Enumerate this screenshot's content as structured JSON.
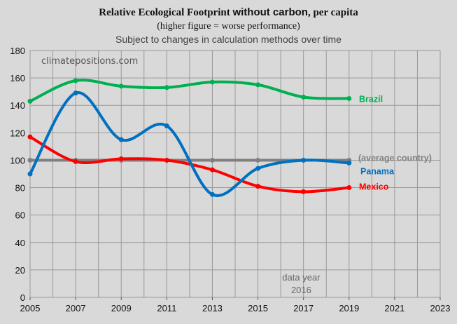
{
  "title": {
    "part1": "Relative Ecological Footprint ",
    "part2": "without carbon",
    "part3": ", per capita",
    "line2": "(higher figure = worse performance)",
    "line3": "Subject to changes in calculation methods over time"
  },
  "watermark": "climatepositions.com",
  "data_year_note": {
    "line1": "data year",
    "line2": "2016"
  },
  "colors": {
    "background": "#d9d9d9",
    "grid": "#999999",
    "brazil": "#00b050",
    "panama": "#0070c0",
    "mexico": "#ff0000",
    "average": "#808080"
  },
  "chart_data": {
    "type": "line",
    "x_range": [
      2005,
      2023
    ],
    "x_ticks": [
      2005,
      2007,
      2009,
      2011,
      2013,
      2015,
      2017,
      2019,
      2021,
      2023
    ],
    "y_range": [
      0,
      180
    ],
    "y_ticks": [
      0,
      20,
      40,
      60,
      80,
      100,
      120,
      140,
      160,
      180
    ],
    "grid": true,
    "series": [
      {
        "name": "Brazil",
        "color": "#00b050",
        "x": [
          2005,
          2007,
          2009,
          2011,
          2013,
          2015,
          2017,
          2019
        ],
        "y": [
          143,
          158,
          154,
          153,
          157,
          155,
          146,
          145
        ]
      },
      {
        "name": "Panama",
        "color": "#0070c0",
        "x": [
          2005,
          2007,
          2009,
          2011,
          2013,
          2015,
          2017,
          2019
        ],
        "y": [
          90,
          149,
          115,
          125,
          75,
          94,
          100,
          98
        ]
      },
      {
        "name": "Mexico",
        "color": "#ff0000",
        "x": [
          2005,
          2007,
          2009,
          2011,
          2013,
          2015,
          2017,
          2019
        ],
        "y": [
          117,
          99,
          101,
          100,
          93,
          81,
          77,
          80
        ]
      },
      {
        "name": "(average country)",
        "color": "#808080",
        "x": [
          2005,
          2007,
          2009,
          2011,
          2013,
          2015,
          2017,
          2019
        ],
        "y": [
          100,
          100,
          100,
          100,
          100,
          100,
          100,
          100
        ]
      }
    ]
  }
}
